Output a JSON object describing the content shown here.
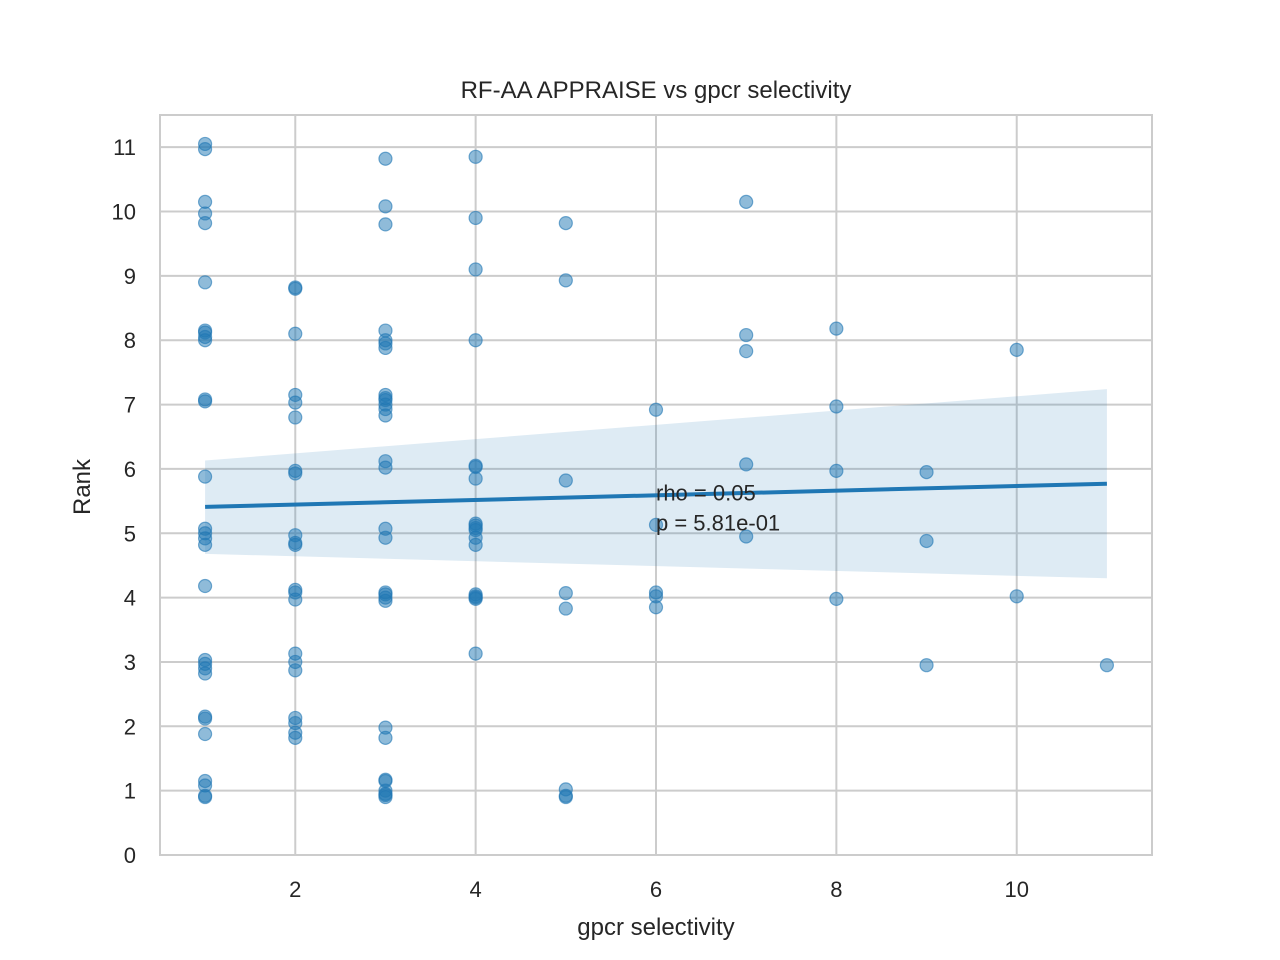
{
  "chart_data": {
    "type": "scatter",
    "title": "RF-AA APPRAISE vs gpcr selectivity",
    "xlabel": "gpcr selectivity",
    "ylabel": "Rank",
    "xlim": [
      0.5,
      11.5
    ],
    "ylim": [
      0,
      11.5
    ],
    "xticks": [
      2,
      4,
      6,
      8,
      10
    ],
    "yticks": [
      0,
      1,
      2,
      3,
      4,
      5,
      6,
      7,
      8,
      9,
      10,
      11
    ],
    "grid": true,
    "colors": {
      "points": "#1f77b4",
      "line": "#1f77b4",
      "band": "#1f77b4",
      "grid": "#cccccc",
      "frame": "#cccccc"
    },
    "points": {
      "x": [
        1,
        1,
        1,
        1,
        1,
        1,
        1,
        1,
        1,
        1,
        1,
        1,
        1,
        1,
        1,
        1,
        1,
        1,
        1,
        1,
        1,
        1,
        1,
        1,
        1,
        1,
        1,
        1,
        1,
        2,
        2,
        2,
        2,
        2,
        2,
        2,
        2,
        2,
        2,
        2,
        2,
        2,
        2,
        2,
        2,
        2,
        2,
        2,
        2,
        2,
        3,
        3,
        3,
        3,
        3,
        3,
        3,
        3,
        3,
        3,
        3,
        3,
        3,
        3,
        3,
        3,
        3,
        3,
        3,
        3,
        3,
        3,
        3,
        3,
        3,
        3,
        3,
        3,
        3,
        4,
        4,
        4,
        4,
        4,
        4,
        4,
        4,
        4,
        4,
        4,
        4,
        4,
        4,
        4,
        4,
        4,
        4,
        5,
        5,
        5,
        5,
        5,
        5,
        5,
        5,
        6,
        6,
        6,
        6,
        6,
        7,
        7,
        7,
        7,
        7,
        8,
        8,
        8,
        8,
        9,
        9,
        9,
        10,
        10,
        11
      ],
      "y": [
        11.05,
        10.97,
        10.15,
        9.97,
        9.82,
        8.9,
        8.15,
        8.12,
        8.05,
        8.0,
        7.08,
        7.05,
        5.88,
        5.07,
        5.0,
        4.92,
        4.82,
        4.18,
        3.03,
        2.97,
        2.9,
        2.82,
        2.15,
        2.12,
        1.88,
        1.15,
        1.08,
        0.92,
        0.9,
        8.82,
        8.8,
        8.1,
        7.15,
        7.03,
        6.8,
        5.97,
        5.93,
        4.97,
        4.85,
        4.82,
        4.12,
        4.08,
        3.97,
        3.13,
        3.0,
        2.87,
        2.13,
        2.05,
        1.9,
        1.82,
        10.82,
        10.08,
        9.8,
        8.15,
        8.0,
        7.95,
        7.88,
        7.15,
        7.1,
        7.07,
        7.0,
        6.93,
        6.83,
        6.12,
        6.02,
        5.07,
        4.93,
        4.08,
        4.05,
        4.0,
        3.95,
        1.98,
        1.82,
        1.17,
        1.15,
        1.0,
        0.95,
        0.93,
        0.9,
        10.85,
        9.9,
        9.1,
        8.0,
        6.05,
        6.03,
        5.85,
        5.15,
        5.12,
        5.08,
        5.05,
        4.93,
        4.82,
        4.05,
        4.02,
        4.0,
        3.98,
        3.13,
        9.82,
        8.93,
        5.82,
        4.07,
        3.83,
        1.02,
        0.92,
        0.9,
        6.92,
        5.13,
        4.08,
        4.02,
        3.85,
        10.15,
        8.08,
        7.83,
        6.07,
        4.95,
        8.18,
        6.97,
        5.97,
        3.98,
        5.95,
        4.88,
        2.95,
        7.85,
        4.02,
        2.95
      ]
    },
    "regression": {
      "x": [
        1,
        11
      ],
      "y": [
        5.41,
        5.77
      ],
      "band_lower": [
        4.68,
        4.3
      ],
      "band_upper": [
        6.13,
        7.24
      ]
    },
    "annotation": {
      "x": 6,
      "y": 5.6,
      "lines": [
        "rho = 0.05",
        "p = 5.81e-01"
      ]
    }
  }
}
